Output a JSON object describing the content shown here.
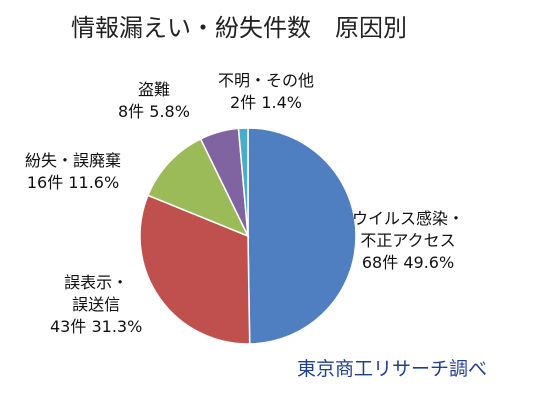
{
  "title": "情報漏えい・紛失件数　原因別",
  "source": "東京商工リサーチ調べ",
  "chart_data": {
    "type": "pie",
    "start_angle_deg": 0,
    "direction": "clockwise",
    "slices": [
      {
        "label": "ウイルス感染・不正アクセス",
        "label_lines": [
          "ウイルス感染・",
          "不正アクセス"
        ],
        "count": 68,
        "count_text": "68件",
        "percent": 49.6,
        "percent_text": "49.6%",
        "color": "#4f7fc0"
      },
      {
        "label": "誤表示・誤送信",
        "label_lines": [
          "誤表示・",
          "誤送信"
        ],
        "count": 43,
        "count_text": "43件",
        "percent": 31.3,
        "percent_text": "31.3%",
        "color": "#c0504d"
      },
      {
        "label": "紛失・誤廃棄",
        "label_lines": [
          "紛失・誤廃棄"
        ],
        "count": 16,
        "count_text": "16件",
        "percent": 11.6,
        "percent_text": "11.6%",
        "color": "#9bbb59"
      },
      {
        "label": "盗難",
        "label_lines": [
          "盗難"
        ],
        "count": 8,
        "count_text": "8件",
        "percent": 5.8,
        "percent_text": "5.8%",
        "color": "#8064a2"
      },
      {
        "label": "不明・その他",
        "label_lines": [
          "不明・その他"
        ],
        "count": 2,
        "count_text": "2件",
        "percent": 1.4,
        "percent_text": "1.4%",
        "color": "#4bacc6"
      }
    ]
  }
}
